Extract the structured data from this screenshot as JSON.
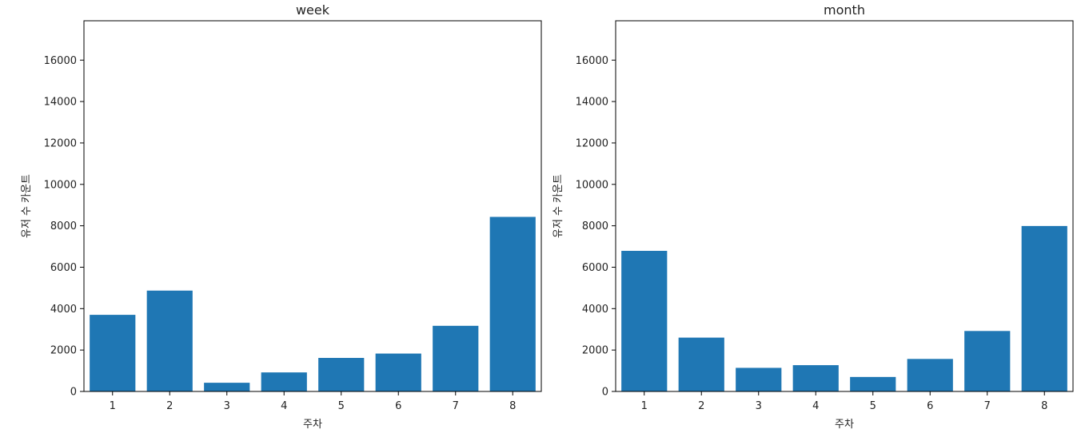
{
  "chart_data": [
    {
      "type": "bar",
      "title": "week",
      "xlabel": "주차",
      "ylabel": "유저 수 카운트",
      "categories": [
        "1",
        "2",
        "3",
        "4",
        "5",
        "6",
        "7",
        "8"
      ],
      "values": [
        3700,
        4870,
        420,
        920,
        1620,
        1830,
        3170,
        8430
      ],
      "ylim": [
        0,
        17900
      ],
      "yticks": [
        0,
        2000,
        4000,
        6000,
        8000,
        10000,
        12000,
        14000,
        16000
      ],
      "grid": false,
      "color": "#1f77b4"
    },
    {
      "type": "bar",
      "title": "month",
      "xlabel": "주차",
      "ylabel": "유저 수 카운트",
      "categories": [
        "1",
        "2",
        "3",
        "4",
        "5",
        "6",
        "7",
        "8"
      ],
      "values": [
        6790,
        2600,
        1140,
        1270,
        700,
        1570,
        2920,
        7990
      ],
      "ylim": [
        0,
        17900
      ],
      "yticks": [
        0,
        2000,
        4000,
        6000,
        8000,
        10000,
        12000,
        14000,
        16000
      ],
      "grid": false,
      "color": "#1f77b4"
    }
  ]
}
